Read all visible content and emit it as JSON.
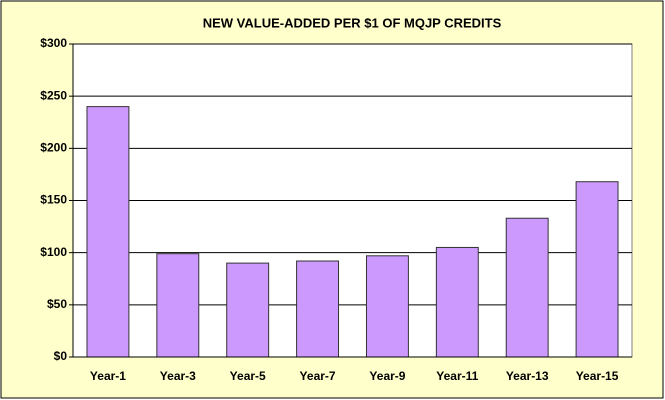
{
  "chart_data": {
    "type": "bar",
    "title": "NEW VALUE-ADDED PER $1 OF MQJP CREDITS",
    "categories": [
      "Year-1",
      "Year-3",
      "Year-5",
      "Year-7",
      "Year-9",
      "Year-11",
      "Year-13",
      "Year-15"
    ],
    "values": [
      240,
      99,
      90,
      92,
      97,
      105,
      133,
      168
    ],
    "color": "#cc99ff",
    "ylim": [
      0,
      300
    ],
    "yticks": [
      {
        "value": 0,
        "label": "$0"
      },
      {
        "value": 50,
        "label": "$50"
      },
      {
        "value": 100,
        "label": "$100"
      },
      {
        "value": 150,
        "label": "$150"
      },
      {
        "value": 200,
        "label": "$200"
      },
      {
        "value": 250,
        "label": "$250"
      },
      {
        "value": 300,
        "label": "$300"
      }
    ],
    "grid": true
  }
}
